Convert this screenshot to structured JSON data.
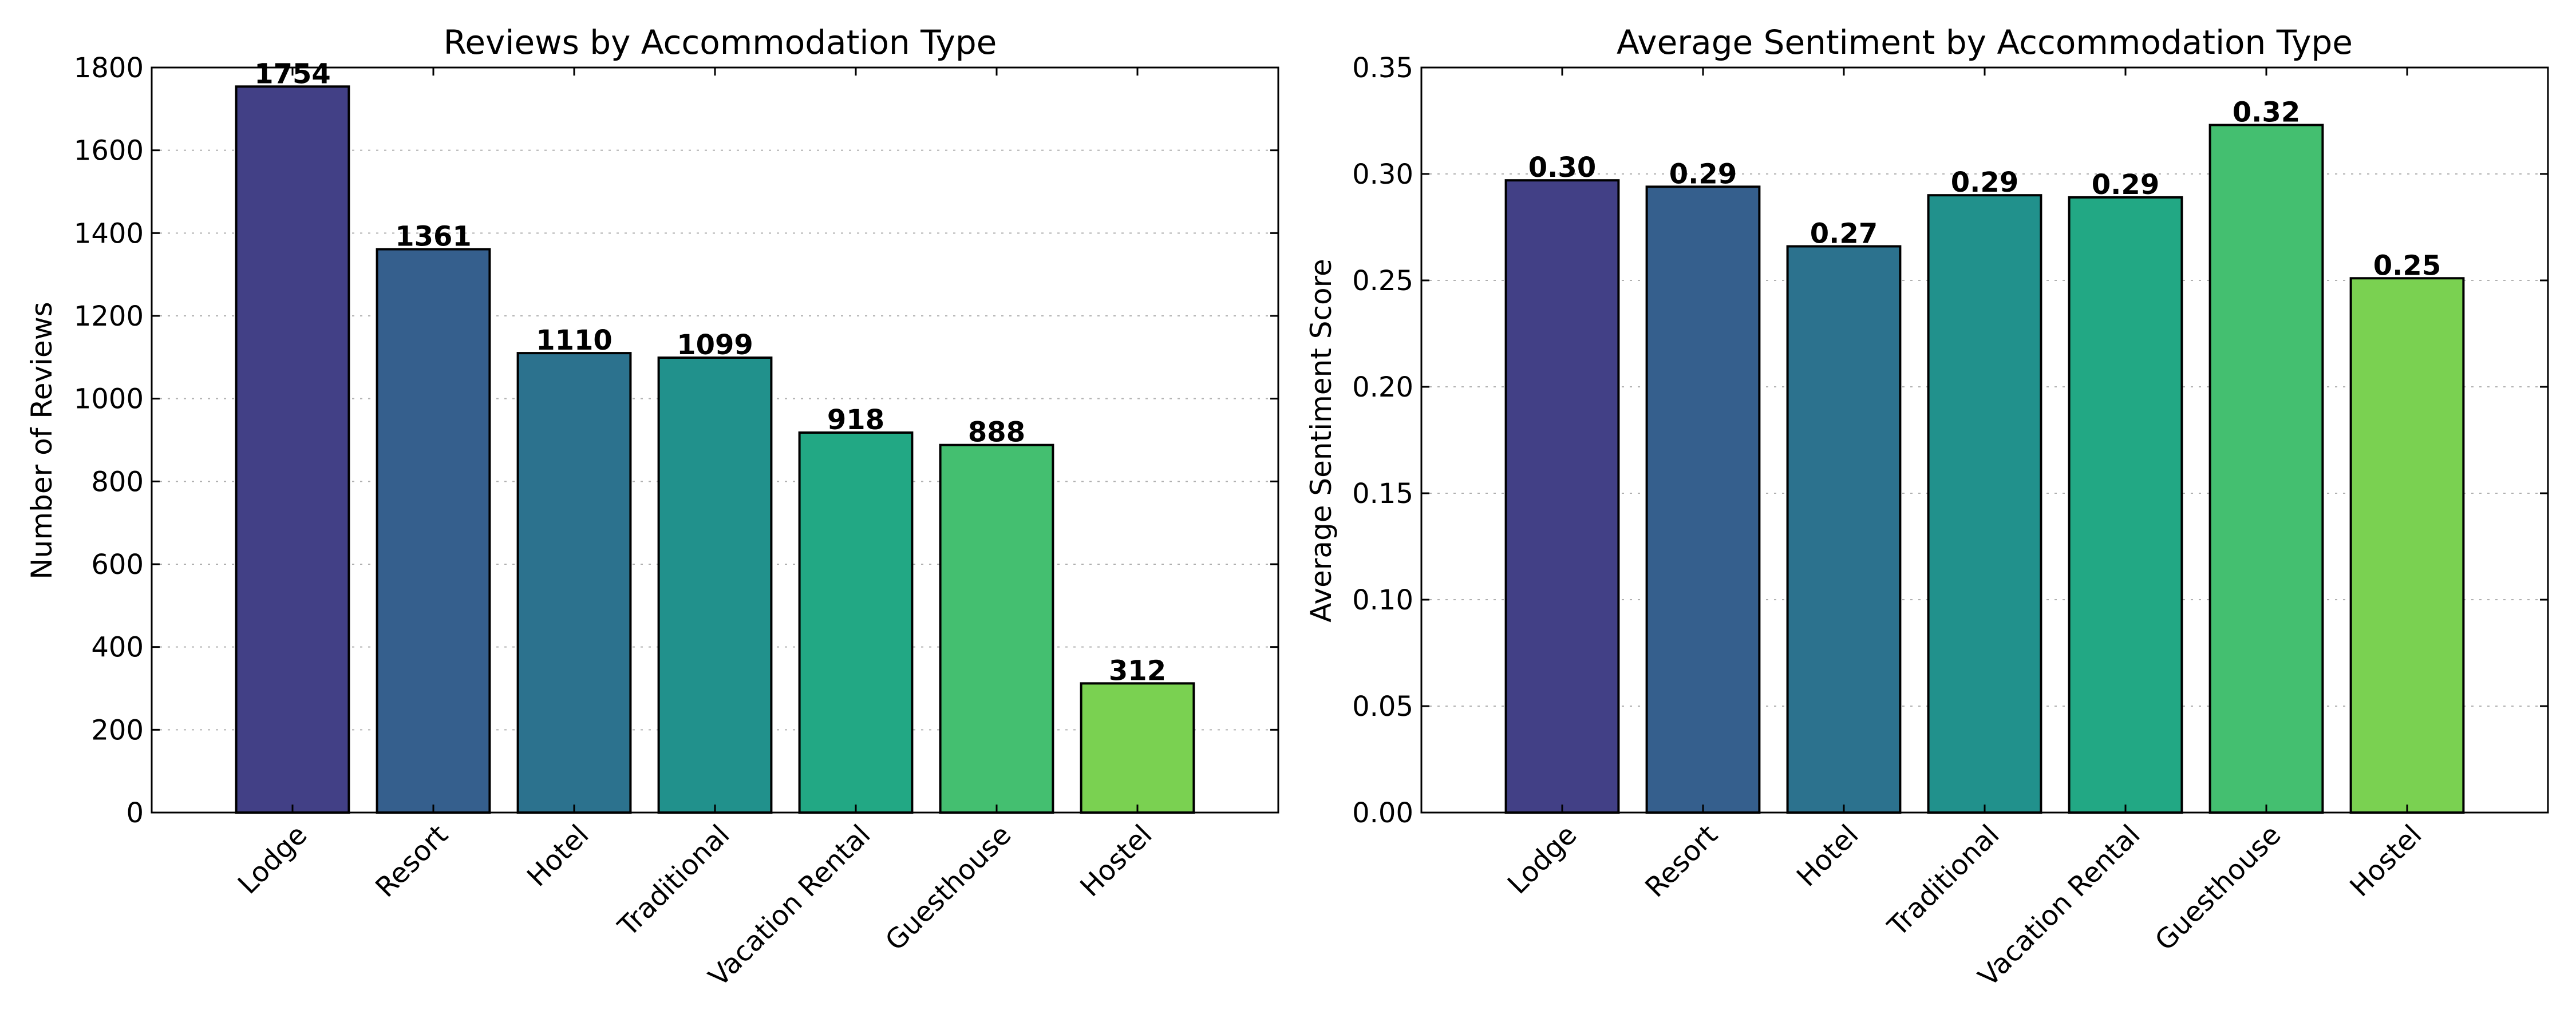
{
  "chart_data": [
    {
      "type": "bar",
      "title": "Reviews by Accommodation Type",
      "xlabel": "",
      "ylabel": "Number of Reviews",
      "categories": [
        "Lodge",
        "Resort",
        "Hotel",
        "Traditional",
        "Vacation Rental",
        "Guesthouse",
        "Hostel"
      ],
      "values": [
        1754,
        1361,
        1110,
        1099,
        918,
        888,
        312
      ],
      "value_labels": [
        "1754",
        "1361",
        "1110",
        "1099",
        "918",
        "888",
        "312"
      ],
      "ylim": [
        0,
        1800
      ],
      "yticks": [
        0,
        200,
        400,
        600,
        800,
        1000,
        1200,
        1400,
        1600,
        1800
      ],
      "ytick_labels": [
        "0",
        "200",
        "400",
        "600",
        "800",
        "1000",
        "1200",
        "1400",
        "1600",
        "1800"
      ],
      "colors": [
        "#424086",
        "#355f8d",
        "#2c728e",
        "#21918c",
        "#22a884",
        "#44bf70",
        "#7ad151"
      ],
      "grid": true,
      "legend": "none"
    },
    {
      "type": "bar",
      "title": "Average Sentiment by Accommodation Type",
      "xlabel": "",
      "ylabel": "Average Sentiment Score",
      "categories": [
        "Lodge",
        "Resort",
        "Hotel",
        "Traditional",
        "Vacation Rental",
        "Guesthouse",
        "Hostel"
      ],
      "values": [
        0.297,
        0.294,
        0.266,
        0.29,
        0.289,
        0.323,
        0.251
      ],
      "value_labels": [
        "0.30",
        "0.29",
        "0.27",
        "0.29",
        "0.29",
        "0.32",
        "0.25"
      ],
      "ylim": [
        0,
        0.35
      ],
      "yticks": [
        0,
        0.05,
        0.1,
        0.15,
        0.2,
        0.25,
        0.3,
        0.35
      ],
      "ytick_labels": [
        "0.00",
        "0.05",
        "0.10",
        "0.15",
        "0.20",
        "0.25",
        "0.30",
        "0.35"
      ],
      "colors": [
        "#424086",
        "#355f8d",
        "#2c728e",
        "#21918c",
        "#22a884",
        "#44bf70",
        "#7ad151"
      ],
      "grid": true,
      "legend": "none"
    }
  ]
}
